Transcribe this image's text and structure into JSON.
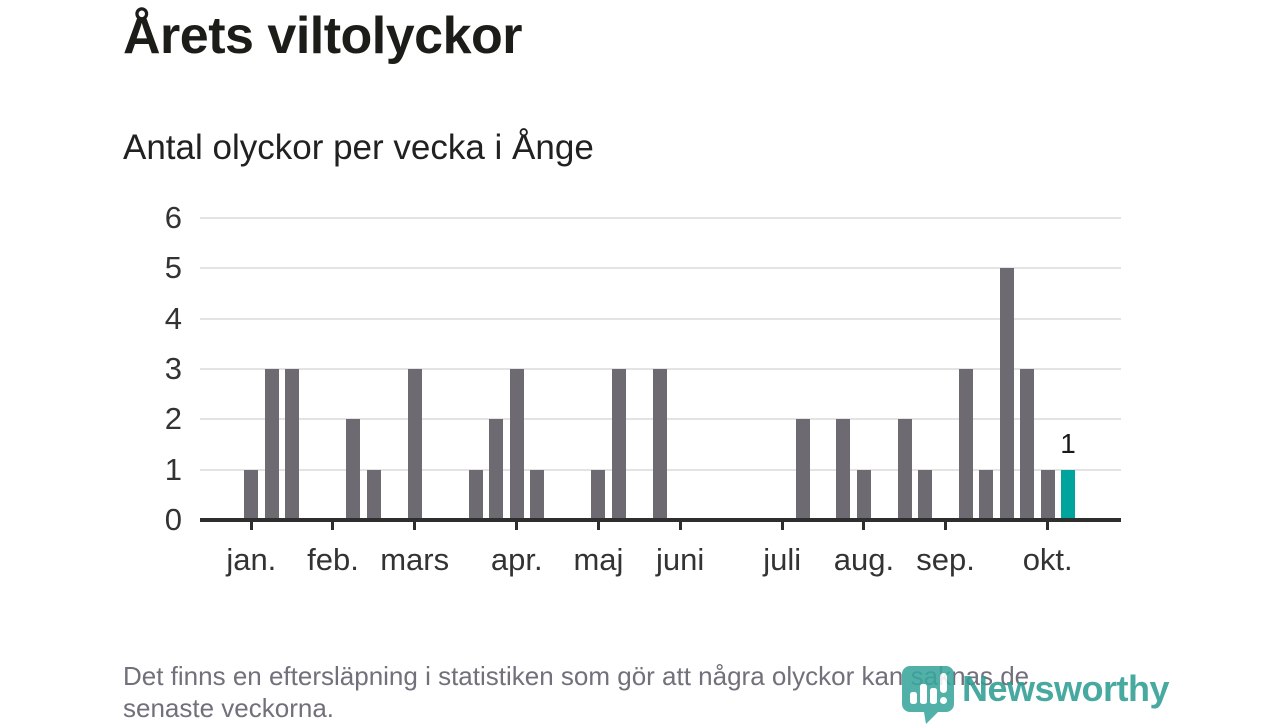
{
  "header": {
    "title": "Årets viltolyckor",
    "subtitle": "Antal olyckor per vecka i Ånge"
  },
  "footer": {
    "note": "Det finns en eftersläpning i statistiken som gör att några olyckor kan saknas de\nsenaste veckorna.",
    "brand": "Newsworthy"
  },
  "colors": {
    "bar": "#6e6a72",
    "highlight": "#00a49c",
    "gridline": "#e3e3e3",
    "axis": "#2e2e2e",
    "label": "#333333",
    "footnote": "#71707b",
    "brand_teal": "#2f9e94"
  },
  "chart_data": {
    "type": "bar",
    "title": "Årets viltolyckor",
    "subtitle": "Antal olyckor per vecka i Ånge",
    "x_unit": "week",
    "weekly_values": [
      1,
      3,
      3,
      0,
      0,
      2,
      1,
      0,
      3,
      0,
      0,
      1,
      2,
      3,
      1,
      0,
      0,
      1,
      3,
      0,
      3,
      0,
      0,
      0,
      0,
      0,
      0,
      2,
      0,
      2,
      1,
      0,
      2,
      1,
      0,
      3,
      1,
      5,
      3,
      1,
      1
    ],
    "first_week": 1,
    "last_week": 41,
    "highlight_week": 41,
    "highlight_value_label": "1",
    "month_ticks": [
      {
        "label": "jan.",
        "week": 1
      },
      {
        "label": "feb.",
        "week": 5
      },
      {
        "label": "mars",
        "week": 9
      },
      {
        "label": "apr.",
        "week": 14
      },
      {
        "label": "maj",
        "week": 18
      },
      {
        "label": "juni",
        "week": 22
      },
      {
        "label": "juli",
        "week": 27
      },
      {
        "label": "aug.",
        "week": 31
      },
      {
        "label": "sep.",
        "week": 35
      },
      {
        "label": "okt.",
        "week": 40
      }
    ],
    "ylim": [
      0,
      6
    ],
    "yticks": [
      0,
      1,
      2,
      3,
      4,
      5,
      6
    ],
    "grid": "horizontal",
    "legend": "none",
    "bar_color": "#6e6a72",
    "highlight_color": "#00a49c"
  }
}
